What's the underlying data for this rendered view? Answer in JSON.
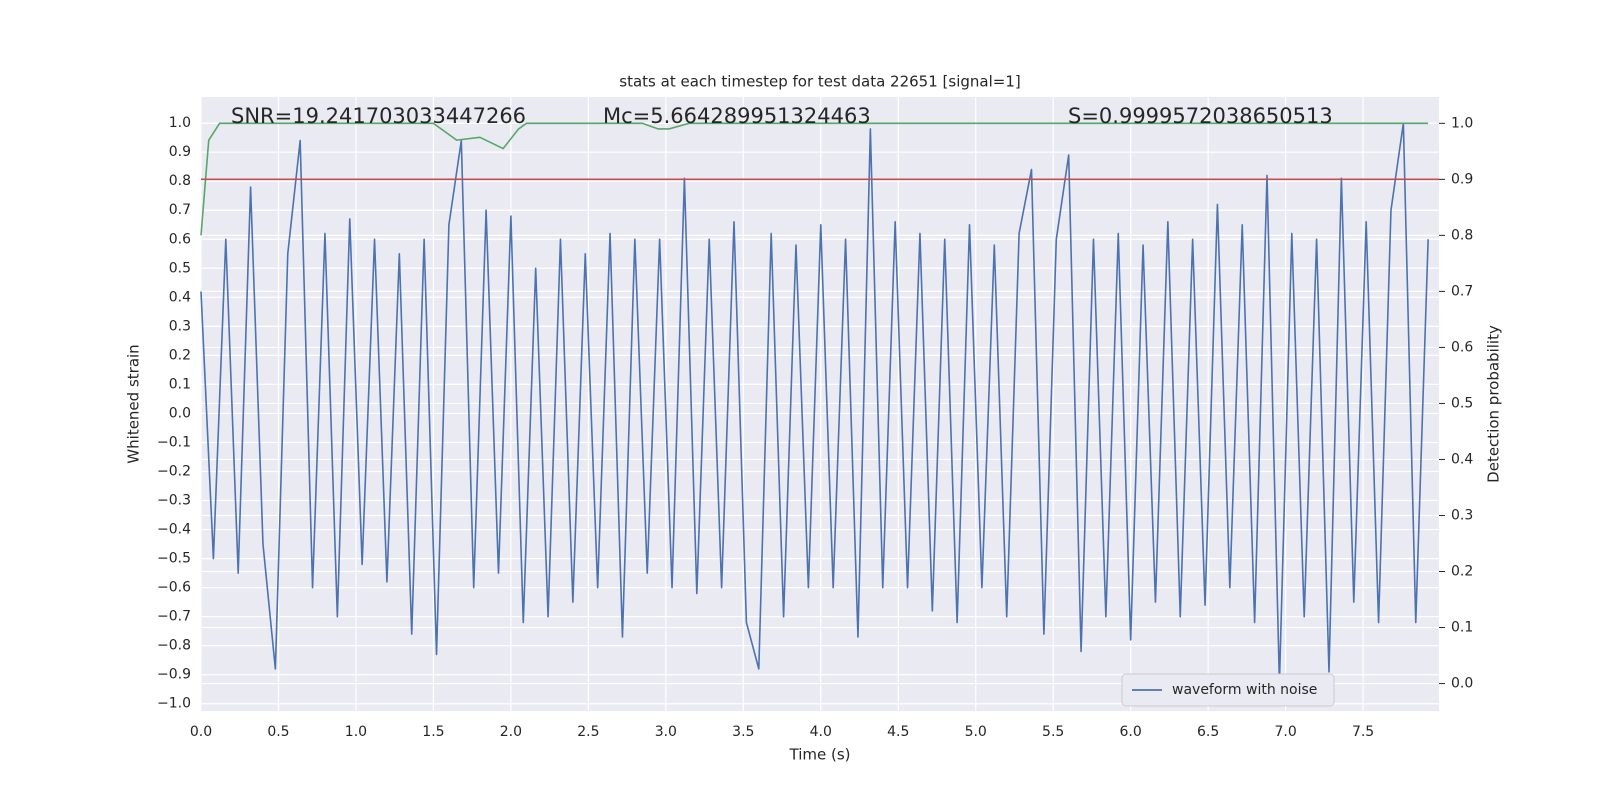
{
  "chart_data": {
    "type": "line",
    "title": "stats at each timestep for test data 22651 [signal=1]",
    "xlabel": "Time (s)",
    "ylabel": "Whitened strain",
    "y2label": "Detection probability",
    "annotations": [
      "SNR=19.241703033447266",
      "Mc=5.664289951324463",
      "S=0.9999572038650513"
    ],
    "xlim": [
      0,
      7.99
    ],
    "ylim": [
      -1.025,
      1.09
    ],
    "y2lim": [
      -0.049,
      1.047
    ],
    "xticks": [
      {
        "value": 0,
        "label": "0.0"
      },
      0.5,
      {
        "value": 1,
        "label": "1.0"
      },
      1.5,
      {
        "value": 2,
        "label": "2.0"
      },
      2.5,
      {
        "value": 3,
        "label": "3.0"
      },
      3.5,
      {
        "value": 4,
        "label": "4.0"
      },
      4.5,
      {
        "value": 5,
        "label": "5.0"
      },
      5.5,
      {
        "value": 6,
        "label": "6.0"
      },
      6.5,
      {
        "value": 7,
        "label": "7.0"
      },
      7.5
    ],
    "yticks": [
      {
        "value": -1,
        "label": "−1.0"
      },
      {
        "value": -0.9,
        "label": "−0.9"
      },
      {
        "value": -0.8,
        "label": "−0.8"
      },
      {
        "value": -0.7,
        "label": "−0.7"
      },
      {
        "value": -0.6,
        "label": "−0.6"
      },
      {
        "value": -0.5,
        "label": "−0.5"
      },
      {
        "value": -0.4,
        "label": "−0.4"
      },
      {
        "value": -0.3,
        "label": "−0.3"
      },
      {
        "value": -0.2,
        "label": "−0.2"
      },
      {
        "value": -0.1,
        "label": "−0.1"
      },
      {
        "value": 0,
        "label": "0.0"
      },
      0.1,
      0.2,
      0.3,
      0.4,
      0.5,
      0.6,
      0.7,
      0.8,
      0.9,
      {
        "value": 1,
        "label": "1.0"
      }
    ],
    "y2ticks": [
      {
        "value": 0,
        "label": "0.0"
      },
      0.1,
      0.2,
      0.3,
      0.4,
      0.5,
      0.6,
      0.7,
      0.8,
      0.9,
      {
        "value": 1,
        "label": "1.0"
      }
    ],
    "grid": true,
    "legend": "lower right",
    "hlines": [
      {
        "value": 0.9,
        "axis": "y2",
        "color": "#c44e52"
      }
    ],
    "series": [
      {
        "name": "waveform with noise",
        "color": "#4c72b0",
        "x": [
          0,
          0.08,
          0.16,
          0.24,
          0.32,
          0.4,
          0.48,
          0.56,
          0.64,
          0.72,
          0.8,
          0.88,
          0.96,
          1.04,
          1.12,
          1.2,
          1.28,
          1.36,
          1.44,
          1.52,
          1.6,
          1.68,
          1.76,
          1.84,
          1.92,
          2,
          2.08,
          2.16,
          2.24,
          2.32,
          2.4,
          2.48,
          2.56,
          2.64,
          2.72,
          2.8,
          2.88,
          2.96,
          3.04,
          3.12,
          3.2,
          3.28,
          3.36,
          3.44,
          3.52,
          3.6,
          3.68,
          3.76,
          3.84,
          3.92,
          4,
          4.08,
          4.16,
          4.24,
          4.32,
          4.4,
          4.48,
          4.56,
          4.64,
          4.72,
          4.8,
          4.88,
          4.96,
          5.04,
          5.12,
          5.2,
          5.28,
          5.36,
          5.44,
          5.52,
          5.6,
          5.68,
          5.76,
          5.84,
          5.92,
          6,
          6.08,
          6.16,
          6.24,
          6.32,
          6.4,
          6.48,
          6.56,
          6.64,
          6.72,
          6.8,
          6.88,
          6.96,
          7.04,
          7.12,
          7.2,
          7.28,
          7.36,
          7.44,
          7.52,
          7.6,
          7.68,
          7.76,
          7.84,
          7.92
        ],
        "values": [
          0.42,
          -0.5,
          0.6,
          -0.55,
          0.78,
          -0.45,
          -0.88,
          0.55,
          0.94,
          -0.6,
          0.62,
          -0.7,
          0.67,
          -0.52,
          0.6,
          -0.58,
          0.55,
          -0.76,
          0.6,
          -0.83,
          0.65,
          0.94,
          -0.6,
          0.7,
          -0.55,
          0.68,
          -0.72,
          0.5,
          -0.7,
          0.6,
          -0.65,
          0.55,
          -0.6,
          0.62,
          -0.77,
          0.6,
          -0.55,
          0.6,
          -0.6,
          0.81,
          -0.62,
          0.6,
          -0.6,
          0.66,
          -0.72,
          -0.88,
          0.62,
          -0.7,
          0.58,
          -0.6,
          0.65,
          -0.6,
          0.6,
          -0.77,
          0.98,
          -0.6,
          0.66,
          -0.6,
          0.62,
          -0.68,
          0.6,
          -0.72,
          0.65,
          -0.6,
          0.58,
          -0.7,
          0.62,
          0.84,
          -0.76,
          0.6,
          0.89,
          -0.82,
          0.6,
          -0.7,
          0.62,
          -0.78,
          0.58,
          -0.65,
          0.66,
          -0.7,
          0.6,
          -0.66,
          0.72,
          -0.6,
          0.65,
          -0.72,
          0.82,
          -0.93,
          0.62,
          -0.7,
          0.6,
          -0.89,
          0.81,
          -0.65,
          0.66,
          -0.72,
          0.7,
          1.0,
          -0.72,
          0.6
        ]
      },
      {
        "color": "#55a868",
        "axis": "y2",
        "x": [
          0,
          0.05,
          0.12,
          1.5,
          1.65,
          1.8,
          1.95,
          2.05,
          2.1,
          2.85,
          2.95,
          3.02,
          3.15,
          7.92
        ],
        "values": [
          0.8,
          0.97,
          1.0,
          1.0,
          0.97,
          0.975,
          0.955,
          0.99,
          1.0,
          1.0,
          0.99,
          0.99,
          1.0,
          1.0
        ]
      }
    ]
  }
}
